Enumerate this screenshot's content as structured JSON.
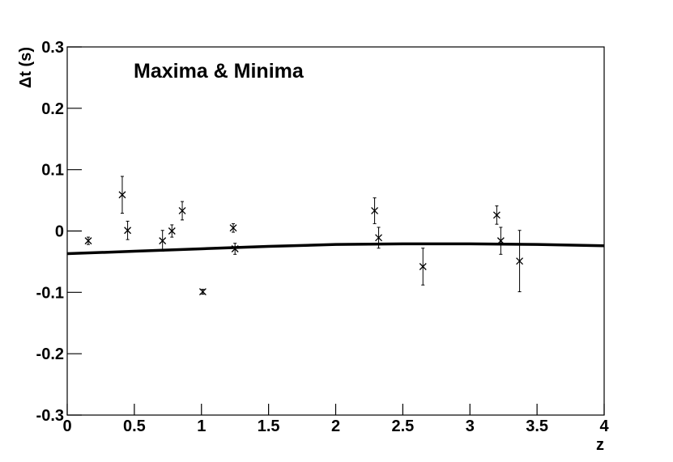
{
  "chart_data": {
    "type": "scatter",
    "title": "Maxima & Minima",
    "x_label": "z",
    "y_label": "Δt (s)",
    "xlim": [
      0,
      4
    ],
    "ylim": [
      -0.3,
      0.3
    ],
    "xticks": [
      0,
      0.5,
      1,
      1.5,
      2,
      2.5,
      3,
      3.5,
      4
    ],
    "yticks": [
      -0.3,
      -0.2,
      -0.1,
      0,
      0.1,
      0.2,
      0.3
    ],
    "color": "#000000",
    "points": {
      "x": [
        0.157,
        0.41,
        0.45,
        0.71,
        0.78,
        0.857,
        1.01,
        1.237,
        1.25,
        2.29,
        2.32,
        2.65,
        3.2,
        3.23,
        3.37
      ],
      "y": [
        -0.016,
        0.059,
        0.001,
        -0.016,
        0.0,
        0.033,
        -0.099,
        0.005,
        -0.029,
        0.033,
        -0.011,
        -0.058,
        0.026,
        -0.016,
        -0.049
      ],
      "yerr": [
        0.006,
        0.03,
        0.015,
        0.017,
        0.01,
        0.015,
        0.004,
        0.007,
        0.009,
        0.021,
        0.017,
        0.03,
        0.015,
        0.022,
        0.05
      ]
    },
    "fit": {
      "x": [
        0,
        0.5,
        1,
        1.5,
        2,
        2.5,
        3,
        3.5,
        4
      ],
      "y": [
        -0.037,
        -0.033,
        -0.029,
        -0.025,
        -0.022,
        -0.021,
        -0.021,
        -0.022,
        -0.024
      ]
    }
  }
}
